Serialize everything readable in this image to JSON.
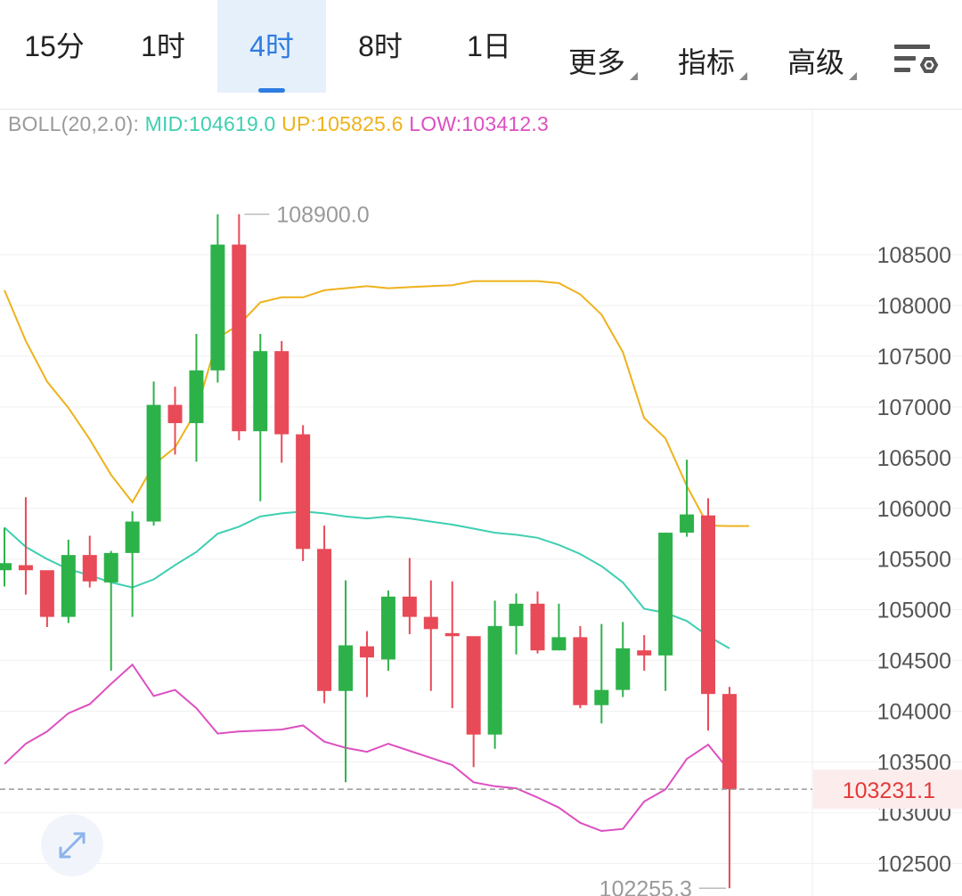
{
  "toolbar": {
    "tabs": [
      {
        "label": "15分",
        "active": false
      },
      {
        "label": "1时",
        "active": false
      },
      {
        "label": "4时",
        "active": true
      },
      {
        "label": "8时",
        "active": false
      },
      {
        "label": "1日",
        "active": false
      }
    ],
    "menus": [
      {
        "label": "更多"
      },
      {
        "label": "指标"
      },
      {
        "label": "高级"
      }
    ],
    "settings_icon": "chart-settings-icon"
  },
  "indicator": {
    "name": "BOLL(20,2.0):",
    "mid": "MID:104619.0",
    "up": "UP:105825.6",
    "low": "LOW:103412.3"
  },
  "colors": {
    "up_candle": "#2db24a",
    "down_candle": "#e84a57",
    "boll_up": "#eeb21c",
    "boll_mid": "#3fcfb1",
    "boll_low": "#dd4fc0",
    "accent": "#2f7de1",
    "price_label": "#e23a3a"
  },
  "chart_data": {
    "type": "candlestick",
    "y_ticks": [
      "108500",
      "108000",
      "107500",
      "107000",
      "106500",
      "106000",
      "105500",
      "105000",
      "104500",
      "104000",
      "103500",
      "103000",
      "102500"
    ],
    "ylim": [
      102200,
      109700
    ],
    "grid": true,
    "current_price": "103231.1",
    "high_annotation": "108900.0",
    "low_annotation": "102255.3",
    "candles": [
      {
        "o": 105390,
        "h": 105810,
        "l": 105230,
        "c": 105460
      },
      {
        "o": 105440,
        "h": 106110,
        "l": 105150,
        "c": 105390
      },
      {
        "o": 105390,
        "h": 105380,
        "l": 104830,
        "c": 104930
      },
      {
        "o": 104930,
        "h": 105690,
        "l": 104870,
        "c": 105540
      },
      {
        "o": 105540,
        "h": 105730,
        "l": 105220,
        "c": 105280
      },
      {
        "o": 105270,
        "h": 105580,
        "l": 104400,
        "c": 105560
      },
      {
        "o": 105560,
        "h": 105970,
        "l": 104930,
        "c": 105870
      },
      {
        "o": 105870,
        "h": 107250,
        "l": 105830,
        "c": 107020
      },
      {
        "o": 107020,
        "h": 107200,
        "l": 106530,
        "c": 106840
      },
      {
        "o": 106840,
        "h": 107720,
        "l": 106460,
        "c": 107360
      },
      {
        "o": 107360,
        "h": 108900,
        "l": 107240,
        "c": 108600
      },
      {
        "o": 108600,
        "h": 108900,
        "l": 106670,
        "c": 106760
      },
      {
        "o": 106760,
        "h": 107720,
        "l": 106070,
        "c": 107550
      },
      {
        "o": 107550,
        "h": 107650,
        "l": 106450,
        "c": 106730
      },
      {
        "o": 106730,
        "h": 106820,
        "l": 105480,
        "c": 105600
      },
      {
        "o": 105600,
        "h": 105830,
        "l": 104080,
        "c": 104200
      },
      {
        "o": 104200,
        "h": 105290,
        "l": 103300,
        "c": 104650
      },
      {
        "o": 104640,
        "h": 104790,
        "l": 104140,
        "c": 104530
      },
      {
        "o": 104510,
        "h": 105190,
        "l": 104400,
        "c": 105130
      },
      {
        "o": 105130,
        "h": 105510,
        "l": 104760,
        "c": 104930
      },
      {
        "o": 104930,
        "h": 105290,
        "l": 104200,
        "c": 104810
      },
      {
        "o": 104770,
        "h": 105280,
        "l": 104030,
        "c": 104740
      },
      {
        "o": 104740,
        "h": 104710,
        "l": 103450,
        "c": 103770
      },
      {
        "o": 103770,
        "h": 105090,
        "l": 103630,
        "c": 104840
      },
      {
        "o": 104840,
        "h": 105160,
        "l": 104560,
        "c": 105060
      },
      {
        "o": 105060,
        "h": 105180,
        "l": 104570,
        "c": 104600
      },
      {
        "o": 104600,
        "h": 105060,
        "l": 104600,
        "c": 104730
      },
      {
        "o": 104730,
        "h": 104840,
        "l": 104030,
        "c": 104060
      },
      {
        "o": 104060,
        "h": 104860,
        "l": 103880,
        "c": 104210
      },
      {
        "o": 104210,
        "h": 104880,
        "l": 104140,
        "c": 104620
      },
      {
        "o": 104600,
        "h": 104750,
        "l": 104400,
        "c": 104550
      },
      {
        "o": 104550,
        "h": 105760,
        "l": 104200,
        "c": 105760
      },
      {
        "o": 105760,
        "h": 106480,
        "l": 105720,
        "c": 105940
      },
      {
        "o": 105930,
        "h": 106100,
        "l": 103810,
        "c": 104170
      },
      {
        "o": 104170,
        "h": 104240,
        "l": 102255.3,
        "c": 103231.1
      }
    ],
    "series": [
      {
        "name": "UP",
        "values": [
          108150,
          107650,
          107250,
          106990,
          106680,
          106330,
          106060,
          106430,
          106600,
          106960,
          107680,
          107810,
          108030,
          108080,
          108080,
          108150,
          108170,
          108190,
          108170,
          108180,
          108190,
          108200,
          108240,
          108240,
          108240,
          108240,
          108220,
          108110,
          107910,
          107540,
          106890,
          106690,
          106220,
          105830,
          105826
        ]
      },
      {
        "name": "MID",
        "values": [
          105810,
          105620,
          105500,
          105400,
          105340,
          105270,
          105220,
          105300,
          105440,
          105570,
          105750,
          105820,
          105920,
          105950,
          105970,
          105950,
          105920,
          105900,
          105920,
          105900,
          105870,
          105840,
          105800,
          105760,
          105740,
          105710,
          105640,
          105550,
          105430,
          105270,
          105010,
          104970,
          104890,
          104740,
          104619
        ]
      },
      {
        "name": "LOW",
        "values": [
          103480,
          103680,
          103800,
          103980,
          104070,
          104270,
          104460,
          104150,
          104210,
          104030,
          103780,
          103800,
          103810,
          103820,
          103860,
          103700,
          103640,
          103600,
          103680,
          103610,
          103540,
          103470,
          103300,
          103260,
          103240,
          103150,
          103050,
          102900,
          102820,
          102840,
          103110,
          103230,
          103530,
          103670,
          103412
        ]
      }
    ]
  }
}
